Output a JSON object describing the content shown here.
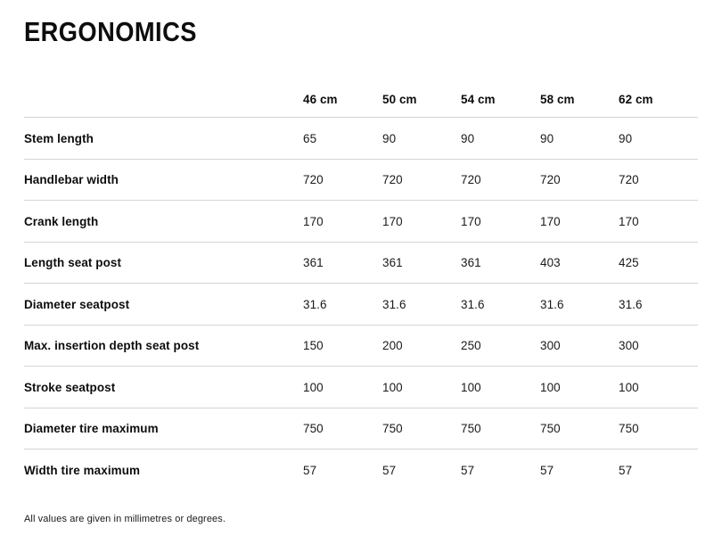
{
  "page": {
    "title": "ERGONOMICS",
    "footnote": "All values are given in millimetres or degrees."
  },
  "colors": {
    "text": "#111111",
    "divider": "#d4d4d4",
    "background": "#ffffff"
  },
  "table": {
    "columns": [
      "46 cm",
      "50 cm",
      "54 cm",
      "58 cm",
      "62 cm"
    ],
    "rows": [
      {
        "label": "Stem length",
        "values": [
          "65",
          "90",
          "90",
          "90",
          "90"
        ]
      },
      {
        "label": "Handlebar width",
        "values": [
          "720",
          "720",
          "720",
          "720",
          "720"
        ]
      },
      {
        "label": "Crank length",
        "values": [
          "170",
          "170",
          "170",
          "170",
          "170"
        ]
      },
      {
        "label": "Length seat post",
        "values": [
          "361",
          "361",
          "361",
          "403",
          "425"
        ]
      },
      {
        "label": "Diameter seatpost",
        "values": [
          "31.6",
          "31.6",
          "31.6",
          "31.6",
          "31.6"
        ]
      },
      {
        "label": "Max. insertion depth seat post",
        "values": [
          "150",
          "200",
          "250",
          "300",
          "300"
        ]
      },
      {
        "label": "Stroke seatpost",
        "values": [
          "100",
          "100",
          "100",
          "100",
          "100"
        ]
      },
      {
        "label": "Diameter tire maximum",
        "values": [
          "750",
          "750",
          "750",
          "750",
          "750"
        ]
      },
      {
        "label": "Width tire maximum",
        "values": [
          "57",
          "57",
          "57",
          "57",
          "57"
        ]
      }
    ]
  }
}
